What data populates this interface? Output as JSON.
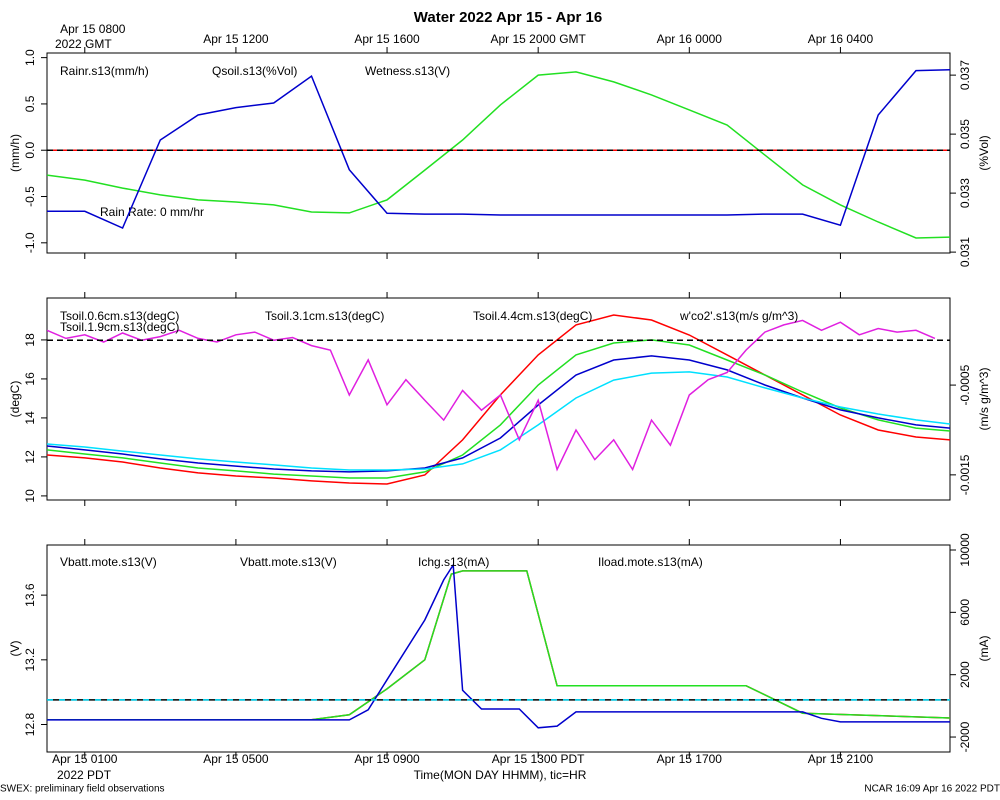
{
  "chart_data": {
    "type": "line",
    "title": "Water 2022 Apr 15 - Apr 16",
    "xlabel": "Time(MON DAY HHMM), tic=HR",
    "x_year_bottom": "2022 PDT",
    "x_year_top": "2022 GMT",
    "footer_left": "SWEX: preliminary field observations",
    "footer_right": "NCAR 16:09 Apr 16 2022 PDT",
    "xlim": [
      0,
      23.9
    ],
    "xticks": [
      {
        "value": 1,
        "label": "Apr 15 0100"
      },
      {
        "value": 5,
        "label": "Apr 15 0500"
      },
      {
        "value": 9,
        "label": "Apr 15 0900"
      },
      {
        "value": 13,
        "label": "Apr 15 1300 PDT"
      },
      {
        "value": 17,
        "label": "Apr 15 1700"
      },
      {
        "value": 21,
        "label": "Apr 15 2100"
      }
    ],
    "x2ticks": [
      {
        "value": 1,
        "label": "Apr 15 0800"
      },
      {
        "value": 5,
        "label": "Apr 15 1200"
      },
      {
        "value": 9,
        "label": "Apr 15 1600"
      },
      {
        "value": 13,
        "label": "Apr 15 2000 GMT"
      },
      {
        "value": 17,
        "label": "Apr 16 0000"
      },
      {
        "value": 21,
        "label": "Apr 16 0400"
      }
    ],
    "panels": [
      {
        "ylabel": "(mm/h)",
        "y2label": "(%Vol)",
        "ylim": [
          -1.11,
          1.05
        ],
        "yticks": [
          {
            "value": -1,
            "label": "-1.0"
          },
          -0.5,
          {
            "value": 0,
            "label": "0.0"
          },
          0.5,
          {
            "value": 1,
            "label": "1.0"
          }
        ],
        "y2lim": [
          0.03097,
          0.03775
        ],
        "y2ticks": [
          0.031,
          0.033,
          0.035,
          0.037
        ],
        "annotation": "Rain Rate: 0 mm/hr",
        "reference_lines": [
          {
            "value": 0,
            "axis": "y"
          }
        ],
        "x": [
          0,
          1,
          2,
          3,
          4,
          5,
          6,
          7,
          8,
          9,
          10,
          11,
          12,
          13,
          14,
          15,
          16,
          17,
          18,
          19,
          20,
          21,
          22,
          23,
          23.9
        ],
        "series": [
          {
            "name": "Rainr.s13(mm/h)",
            "color": "#ff0000",
            "x": [
              0,
              23.9
            ],
            "values": [
              0,
              0
            ]
          },
          {
            "name": "Qsoil.s13(%Vol)",
            "color": "#22e022",
            "axis": "y2",
            "values": [
              0.03361,
              0.03344,
              0.03317,
              0.03294,
              0.03277,
              0.0327,
              0.0326,
              0.03236,
              0.03233,
              0.03277,
              0.03378,
              0.0348,
              0.03599,
              0.037,
              0.03711,
              0.03677,
              0.03633,
              0.03582,
              0.03531,
              0.03429,
              0.03328,
              0.0326,
              0.03202,
              0.03148,
              0.03151
            ]
          },
          {
            "name": "Wetness.s13(V)",
            "color": "#0000cc",
            "values": [
              -0.66,
              -0.66,
              -0.84,
              0.11,
              0.38,
              0.46,
              0.51,
              0.8,
              -0.21,
              -0.68,
              -0.69,
              -0.69,
              -0.7,
              -0.7,
              -0.7,
              -0.7,
              -0.7,
              -0.7,
              -0.7,
              -0.69,
              -0.69,
              -0.81,
              0.38,
              0.86,
              0.87
            ]
          }
        ]
      },
      {
        "ylabel": "(degC)",
        "y2label": "(m/s g/m^3)",
        "ylim": [
          9.79,
          20.15
        ],
        "yticks": [
          10,
          12,
          14,
          16,
          18
        ],
        "y2lim": [
          -0.00178,
          0.00047
        ],
        "y2ticks": [
          -0.0015,
          -0.0005
        ],
        "reference_lines": [
          {
            "value": 0,
            "axis": "y2"
          }
        ],
        "x": [
          0,
          1,
          2,
          3,
          4,
          5,
          6,
          7,
          8,
          9,
          10,
          11,
          12,
          13,
          14,
          15,
          16,
          17,
          18,
          19,
          20,
          21,
          22,
          23,
          23.9
        ],
        "series": [
          {
            "name": "Tsoil.0.6cm.s13(degC)",
            "color": "#ff0000",
            "values": [
              12.1,
              11.95,
              11.74,
              11.43,
              11.18,
              11.02,
              10.92,
              10.77,
              10.66,
              10.61,
              11.07,
              12.87,
              15.18,
              17.23,
              18.77,
              19.28,
              19.02,
              18.25,
              17.23,
              16.2,
              15.18,
              14.15,
              13.38,
              13.02,
              12.87
            ]
          },
          {
            "name": "Tsoil.1.9cm.s13(degC)",
            "color": "#22e022",
            "values": [
              12.36,
              12.15,
              11.95,
              11.69,
              11.43,
              11.28,
              11.12,
              11.02,
              10.92,
              10.92,
              11.23,
              12.1,
              13.64,
              15.69,
              17.23,
              17.84,
              18.0,
              17.74,
              16.97,
              16.2,
              15.33,
              14.51,
              13.9,
              13.48,
              13.33
            ]
          },
          {
            "name": "Tsoil.3.1cm.s13(degC)",
            "color": "#0000cc",
            "values": [
              12.56,
              12.36,
              12.15,
              11.9,
              11.69,
              11.53,
              11.38,
              11.28,
              11.23,
              11.28,
              11.43,
              11.95,
              12.97,
              14.66,
              16.2,
              16.97,
              17.18,
              16.97,
              16.46,
              15.69,
              15.02,
              14.41,
              14.0,
              13.64,
              13.48
            ]
          },
          {
            "name": "Tsoil.4.4cm.s13(degC)",
            "color": "#00e0ff",
            "values": [
              12.66,
              12.51,
              12.3,
              12.1,
              11.9,
              11.74,
              11.59,
              11.43,
              11.33,
              11.33,
              11.38,
              11.64,
              12.36,
              13.64,
              15.02,
              15.94,
              16.3,
              16.36,
              16.1,
              15.54,
              15.02,
              14.56,
              14.2,
              13.9,
              13.69
            ]
          },
          {
            "name": "w'co2'.s13(m/s g/m^3)",
            "color": "#e020e0",
            "axis": "y2",
            "x": [
              0,
              0.5,
              1,
              1.5,
              2,
              2.5,
              3,
              3.5,
              4,
              4.5,
              5,
              5.5,
              6,
              6.5,
              7,
              7.5,
              8,
              8.5,
              9,
              9.5,
              10,
              10.5,
              11,
              11.5,
              12,
              12.5,
              13,
              13.5,
              14,
              14.5,
              15,
              15.5,
              16,
              16.5,
              17,
              17.5,
              18,
              18.5,
              19,
              19.5,
              20,
              20.5,
              21,
              21.5,
              22,
              22.5,
              23,
              23.5
            ],
            "values": [
              0.00011,
              2e-05,
              6e-05,
              -2e-05,
              8e-05,
              0,
              4e-05,
              0.00011,
              2e-05,
              -2e-05,
              6e-05,
              9e-05,
              0,
              3e-05,
              -6e-05,
              -0.00011,
              -0.00061,
              -0.00022,
              -0.00072,
              -0.00044,
              -0.00067,
              -0.00089,
              -0.00056,
              -0.00078,
              -0.00061,
              -0.00111,
              -0.00067,
              -0.00144,
              -0.001,
              -0.00133,
              -0.00111,
              -0.00144,
              -0.00089,
              -0.00117,
              -0.00061,
              -0.00044,
              -0.00036,
              -0.00011,
              9e-05,
              0.00017,
              0.00022,
              0.00011,
              0.0002,
              6e-05,
              0.00013,
              9e-05,
              0.00011,
              2e-05
            ]
          }
        ]
      },
      {
        "ylabel": "(V)",
        "y2label": "(mA)",
        "ylim": [
          12.63,
          13.91
        ],
        "yticks": [
          12.8,
          13.2,
          13.6
        ],
        "y2lim": [
          -2960,
          10320
        ],
        "y2ticks": [
          -2000,
          2000,
          6000,
          10000
        ],
        "series": [
          {
            "name": "Vbatt.mote.s13(V)",
            "color": "#ff0000",
            "x": [
              0,
              7,
              8,
              9,
              10,
              10.7,
              11,
              12.7,
              13.5,
              18.5,
              20,
              23.9
            ],
            "values": [
              12.83,
              12.83,
              12.86,
              13.02,
              13.2,
              13.73,
              13.75,
              13.75,
              13.04,
              13.04,
              12.87,
              12.84
            ]
          },
          {
            "name": "Vbatt.mote.s13(V)",
            "color": "#22e022",
            "x": [
              0,
              7,
              8,
              9,
              10,
              10.7,
              11,
              12.7,
              13.5,
              18.5,
              20,
              23.9
            ],
            "values": [
              12.83,
              12.83,
              12.86,
              13.02,
              13.2,
              13.73,
              13.75,
              13.75,
              13.04,
              13.04,
              12.87,
              12.84
            ]
          },
          {
            "name": "Ichg.s13(mA)",
            "color": "#0000cc",
            "axis": "y2",
            "x": [
              0,
              8,
              8.5,
              9,
              10,
              10.5,
              10.75,
              11,
              11.5,
              12.5,
              13,
              13.5,
              14,
              20,
              20.5,
              21,
              23.9
            ],
            "values": [
              -900,
              -900,
              -250,
              1670,
              5510,
              8080,
              9040,
              1000,
              -200,
              -200,
              -1410,
              -1300,
              -390,
              -390,
              -800,
              -1030,
              -1030
            ]
          },
          {
            "name": "Iload.mote.s13(mA)",
            "color": "#00e0ff",
            "axis": "y2",
            "dash": true,
            "x": [
              0,
              23.9
            ],
            "values": [
              380,
              380
            ]
          }
        ]
      }
    ]
  }
}
